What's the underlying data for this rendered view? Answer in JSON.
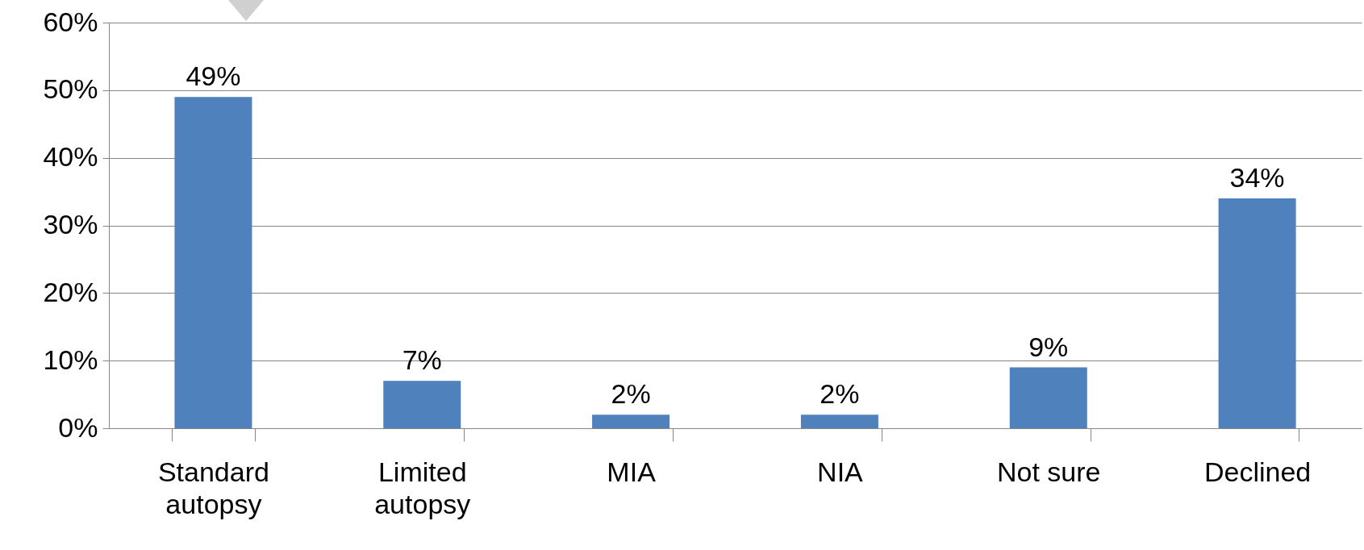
{
  "chart_data": {
    "type": "bar",
    "categories": [
      "Standard autopsy",
      "Limited autopsy",
      "MIA",
      "NIA",
      "Not sure",
      "Declined"
    ],
    "values": [
      49,
      7,
      2,
      2,
      9,
      34
    ],
    "color": "#4f81bd",
    "data_labels": true,
    "value_labels": [
      "49%",
      "7%",
      "2%",
      "2%",
      "9%",
      "34%"
    ],
    "ylim": [
      0,
      60
    ],
    "yticks": [
      {
        "value": 0,
        "label": "0%"
      },
      {
        "value": 10,
        "label": "10%"
      },
      {
        "value": 20,
        "label": "20%"
      },
      {
        "value": 30,
        "label": "30%"
      },
      {
        "value": 40,
        "label": "40%"
      },
      {
        "value": 50,
        "label": "50%"
      },
      {
        "value": 60,
        "label": "60%"
      }
    ],
    "grid": "y"
  }
}
